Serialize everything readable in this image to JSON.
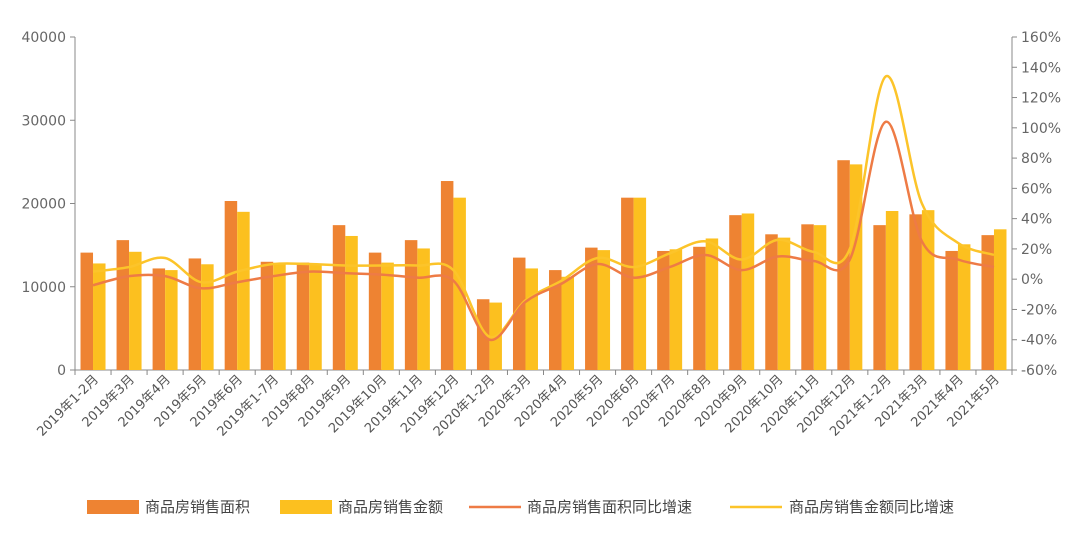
{
  "chart_data": {
    "type": "bar",
    "categories": [
      "2019年1-2月",
      "2019年3月",
      "2019年4月",
      "2019年5月",
      "2019年6月",
      "2019年1-7月",
      "2019年8月",
      "2019年9月",
      "2019年10月",
      "2019年11月",
      "2019年12月",
      "2020年1-2月",
      "2020年3月",
      "2020年4月",
      "2020年5月",
      "2020年6月",
      "2020年7月",
      "2020年8月",
      "2020年9月",
      "2020年10月",
      "2020年11月",
      "2020年12月",
      "2021年1-2月",
      "2021年3月",
      "2021年4月",
      "2021年5月"
    ],
    "series": [
      {
        "name": "商品房销售面积",
        "kind": "bar",
        "axis": "left",
        "color": "#EE8332",
        "values": [
          14100,
          15600,
          12200,
          13400,
          20300,
          13000,
          12900,
          17400,
          14100,
          15600,
          22700,
          8500,
          13500,
          12000,
          14700,
          20700,
          14300,
          14800,
          18600,
          16300,
          17500,
          25200,
          17400,
          18700,
          14300,
          16200
        ]
      },
      {
        "name": "商品房销售金额",
        "kind": "bar",
        "axis": "left",
        "color": "#FCC01F",
        "values": [
          12800,
          14200,
          12000,
          12700,
          19000,
          12700,
          12700,
          16100,
          12900,
          14600,
          20700,
          8100,
          12200,
          11200,
          14400,
          20700,
          14500,
          15800,
          18800,
          15900,
          17400,
          24700,
          19100,
          19200,
          15100,
          16900
        ]
      },
      {
        "name": "商品房销售面积同比增速",
        "kind": "line",
        "axis": "right",
        "color": "#EE7B45",
        "values": [
          -4,
          2,
          2,
          -6,
          -2,
          2,
          5,
          4,
          3,
          1,
          -1,
          -40,
          -15,
          -3,
          10,
          1,
          8,
          16,
          6,
          15,
          12,
          13,
          104,
          25,
          13,
          8
        ]
      },
      {
        "name": "商品房销售金额同比增速",
        "kind": "line",
        "axis": "right",
        "color": "#FCC42A",
        "values": [
          5,
          8,
          14,
          -2,
          5,
          10,
          10,
          9,
          9,
          9,
          6,
          -38,
          -14,
          -1,
          14,
          8,
          17,
          25,
          13,
          26,
          18,
          20,
          134,
          50,
          24,
          16
        ]
      }
    ],
    "left_axis": {
      "ticks": [
        "0",
        "10000",
        "20000",
        "30000",
        "40000"
      ],
      "ylim": [
        0,
        40000
      ]
    },
    "right_axis": {
      "ticks": [
        "-60%",
        "-40%",
        "-20%",
        "0%",
        "20%",
        "40%",
        "60%",
        "80%",
        "100%",
        "120%",
        "140%",
        "160%"
      ],
      "ylim": [
        -60,
        160
      ]
    },
    "legend_position": "bottom"
  },
  "legend": {
    "bar_area": "商品房销售面积",
    "bar_amount": "商品房销售金额",
    "line_area": "商品房销售面积同比增速",
    "line_amount": "商品房销售金额同比增速"
  }
}
